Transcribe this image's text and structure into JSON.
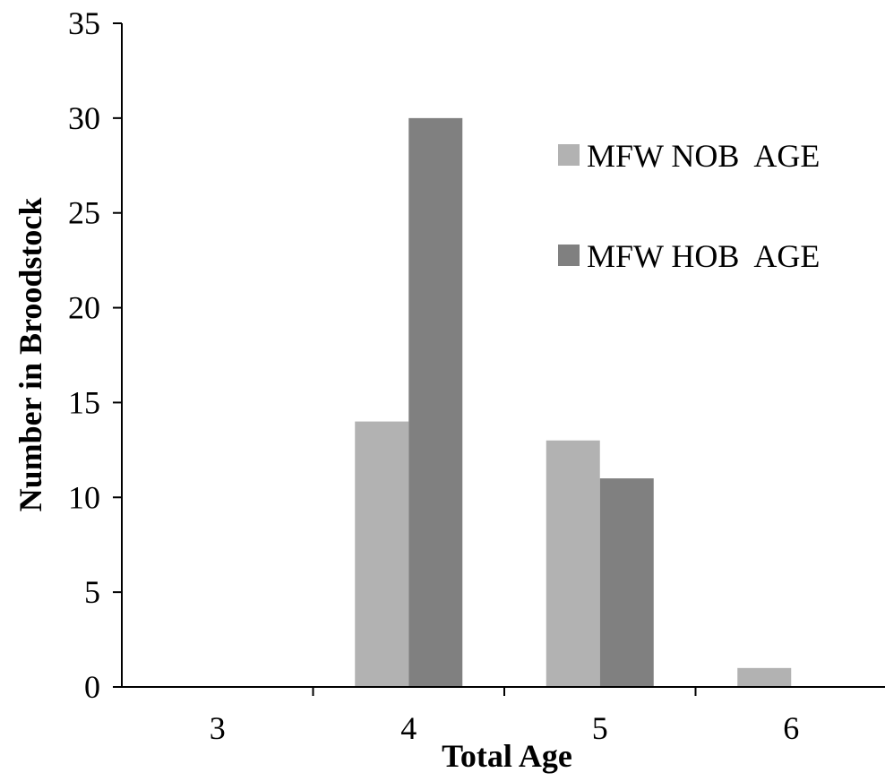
{
  "chart_data": {
    "type": "bar",
    "categories": [
      "3",
      "4",
      "5",
      "6"
    ],
    "series": [
      {
        "name": "MFW NOB  AGE",
        "values": [
          0,
          14,
          13,
          1
        ],
        "color": "#b2b2b2"
      },
      {
        "name": "MFW HOB  AGE",
        "values": [
          0,
          30,
          11,
          0
        ],
        "color": "#808080"
      }
    ],
    "xlabel": "Total Age",
    "ylabel": "Number in Broodstock",
    "ylim": [
      0,
      35
    ],
    "yticks": [
      "0",
      "5",
      "10",
      "15",
      "20",
      "25",
      "30",
      "35"
    ],
    "grid": false,
    "legend_position": "top-right"
  }
}
